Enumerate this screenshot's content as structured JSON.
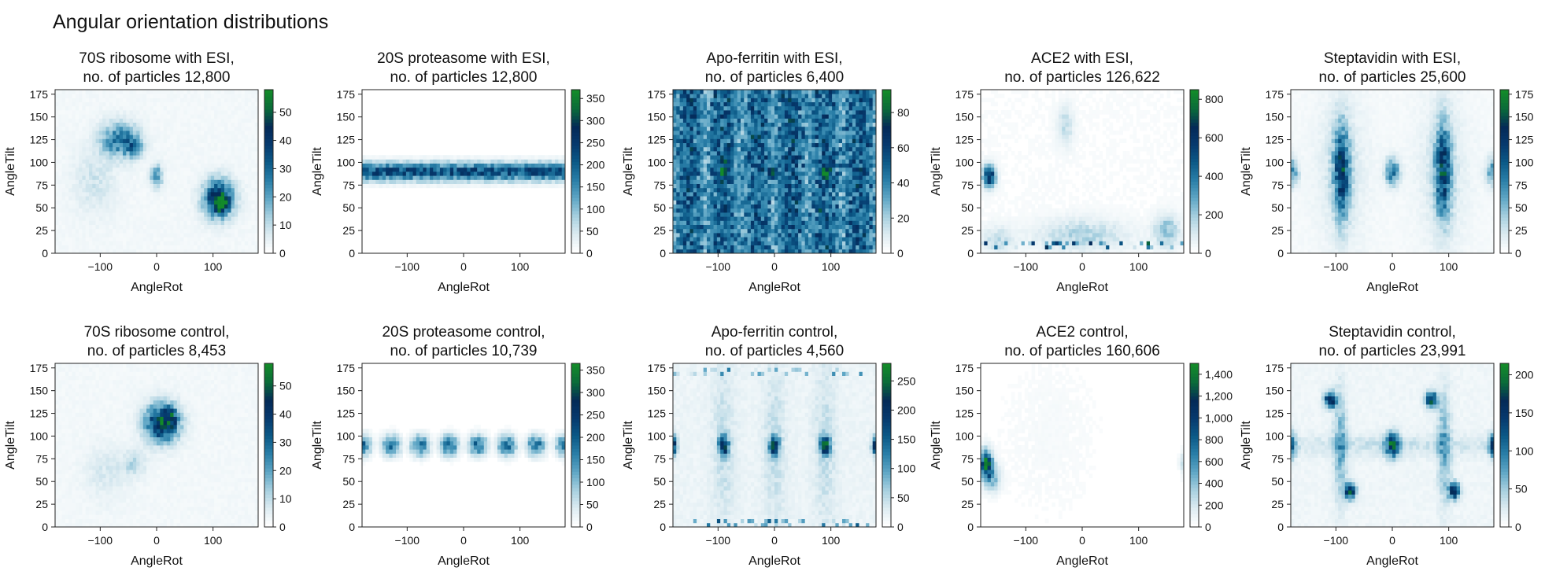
{
  "figure_title": "Angular orientation distributions",
  "chart_data": [
    {
      "type": "heatmap",
      "title_line1": "70S ribosome with ESI,",
      "title_line2": "no. of particles 12,800",
      "xlabel": "AngleRot",
      "ylabel": "AngleTilt",
      "xlim": [
        -180,
        180
      ],
      "ylim": [
        0,
        180
      ],
      "xticks": [
        -100,
        0,
        100
      ],
      "xtick_labels": [
        "−100",
        "0",
        "100"
      ],
      "yticks": [
        0,
        25,
        50,
        75,
        100,
        125,
        150,
        175
      ],
      "ytick_labels": [
        "0",
        "25",
        "50",
        "75",
        "100",
        "125",
        "150",
        "175"
      ],
      "colorbar_ticks": [
        0,
        10,
        20,
        30,
        40,
        50
      ],
      "colorbar_tick_labels": [
        "0",
        "10",
        "20",
        "30",
        "40",
        "50"
      ],
      "colorbar_max": 58,
      "pattern": "blobs",
      "background": 0.04,
      "blobs": [
        {
          "rot": -65,
          "tilt": 125,
          "srot": 22,
          "stilt": 13,
          "val": 0.45
        },
        {
          "rot": -40,
          "tilt": 118,
          "srot": 10,
          "stilt": 8,
          "val": 0.3
        },
        {
          "rot": 0,
          "tilt": 85,
          "srot": 7,
          "stilt": 8,
          "val": 0.4
        },
        {
          "rot": 110,
          "tilt": 60,
          "srot": 18,
          "stilt": 14,
          "val": 0.75
        },
        {
          "rot": 115,
          "tilt": 55,
          "srot": 7,
          "stilt": 6,
          "val": 0.6
        },
        {
          "rot": -110,
          "tilt": 80,
          "srot": 25,
          "stilt": 25,
          "val": 0.1
        }
      ]
    },
    {
      "type": "heatmap",
      "title_line1": "20S proteasome with ESI,",
      "title_line2": "no. of particles 12,800",
      "xlabel": "AngleRot",
      "ylabel": "AngleTilt",
      "xlim": [
        -180,
        180
      ],
      "ylim": [
        0,
        180
      ],
      "xticks": [
        -100,
        0,
        100
      ],
      "xtick_labels": [
        "−100",
        "0",
        "100"
      ],
      "yticks": [
        0,
        25,
        50,
        75,
        100,
        125,
        150,
        175
      ],
      "ytick_labels": [
        "0",
        "25",
        "50",
        "75",
        "100",
        "125",
        "150",
        "175"
      ],
      "colorbar_ticks": [
        0,
        50,
        100,
        150,
        200,
        250,
        300,
        350
      ],
      "colorbar_tick_labels": [
        "0",
        "50",
        "100",
        "150",
        "200",
        "250",
        "300",
        "350"
      ],
      "colorbar_max": 370,
      "pattern": "band",
      "band_center": 90,
      "band_width": 7,
      "band_val": 0.6,
      "background": 0.0
    },
    {
      "type": "heatmap",
      "title_line1": "Apo-ferritin with ESI,",
      "title_line2": "no. of particles 6,400",
      "xlabel": "AngleRot",
      "ylabel": "AngleTilt",
      "xlim": [
        -180,
        180
      ],
      "ylim": [
        0,
        180
      ],
      "xticks": [
        -100,
        0,
        100
      ],
      "xtick_labels": [
        "−100",
        "0",
        "100"
      ],
      "yticks": [
        0,
        25,
        50,
        75,
        100,
        125,
        150,
        175
      ],
      "ytick_labels": [
        "0",
        "25",
        "50",
        "75",
        "100",
        "125",
        "150",
        "175"
      ],
      "colorbar_ticks": [
        0,
        20,
        40,
        60,
        80
      ],
      "colorbar_tick_labels": [
        "0",
        "20",
        "40",
        "60",
        "80"
      ],
      "colorbar_max": 93,
      "pattern": "uniform",
      "background": 0.45,
      "blobs": [
        {
          "rot": -90,
          "tilt": 90,
          "srot": 5,
          "stilt": 5,
          "val": 0.55
        },
        {
          "rot": 0,
          "tilt": 90,
          "srot": 5,
          "stilt": 5,
          "val": 0.55
        },
        {
          "rot": 90,
          "tilt": 90,
          "srot": 5,
          "stilt": 5,
          "val": 0.55
        }
      ]
    },
    {
      "type": "heatmap",
      "title_line1": "ACE2 with ESI,",
      "title_line2": "no. of particles 126,622",
      "xlabel": "AngleRot",
      "ylabel": "AngleTilt",
      "xlim": [
        -180,
        180
      ],
      "ylim": [
        0,
        180
      ],
      "xticks": [
        -100,
        0,
        100
      ],
      "xtick_labels": [
        "−100",
        "0",
        "100"
      ],
      "yticks": [
        0,
        25,
        50,
        75,
        100,
        125,
        150,
        175
      ],
      "ytick_labels": [
        "0",
        "25",
        "50",
        "75",
        "100",
        "125",
        "150",
        "175"
      ],
      "colorbar_ticks": [
        0,
        200,
        400,
        600,
        800
      ],
      "colorbar_tick_labels": [
        "0",
        "200",
        "400",
        "600",
        "800"
      ],
      "colorbar_max": 850,
      "pattern": "blobs",
      "background": 0.02,
      "blobs": [
        {
          "rot": -165,
          "tilt": 85,
          "srot": 8,
          "stilt": 8,
          "val": 0.7
        },
        {
          "rot": -30,
          "tilt": 140,
          "srot": 10,
          "stilt": 15,
          "val": 0.15
        },
        {
          "rot": 0,
          "tilt": 20,
          "srot": 55,
          "stilt": 12,
          "val": 0.18
        },
        {
          "rot": 150,
          "tilt": 25,
          "srot": 15,
          "stilt": 12,
          "val": 0.25
        },
        {
          "rot": -150,
          "tilt": 15,
          "srot": 20,
          "stilt": 10,
          "val": 0.15
        }
      ],
      "edge_row": {
        "tilt": 8,
        "val": 0.7
      }
    },
    {
      "type": "heatmap",
      "title_line1": "Steptavidin with ESI,",
      "title_line2": "no. of particles 25,600",
      "xlabel": "AngleRot",
      "ylabel": "AngleTilt",
      "xlim": [
        -180,
        180
      ],
      "ylim": [
        0,
        180
      ],
      "xticks": [
        -100,
        0,
        100
      ],
      "xtick_labels": [
        "−100",
        "0",
        "100"
      ],
      "yticks": [
        0,
        25,
        50,
        75,
        100,
        125,
        150,
        175
      ],
      "ytick_labels": [
        "0",
        "25",
        "50",
        "75",
        "100",
        "125",
        "150",
        "175"
      ],
      "colorbar_ticks": [
        0,
        25,
        50,
        75,
        100,
        125,
        150,
        175
      ],
      "colorbar_tick_labels": [
        "0",
        "25",
        "50",
        "75",
        "100",
        "125",
        "150",
        "175"
      ],
      "colorbar_max": 180,
      "pattern": "blobs",
      "background": 0.03,
      "blobs": [
        {
          "rot": -90,
          "tilt": 90,
          "srot": 10,
          "stilt": 35,
          "val": 0.6
        },
        {
          "rot": 90,
          "tilt": 90,
          "srot": 10,
          "stilt": 35,
          "val": 0.6
        },
        {
          "rot": 0,
          "tilt": 90,
          "srot": 9,
          "stilt": 10,
          "val": 0.45
        },
        {
          "rot": -180,
          "tilt": 90,
          "srot": 9,
          "stilt": 10,
          "val": 0.4
        },
        {
          "rot": 180,
          "tilt": 90,
          "srot": 9,
          "stilt": 10,
          "val": 0.4
        },
        {
          "rot": -90,
          "tilt": 90,
          "srot": 30,
          "stilt": 55,
          "val": 0.1
        },
        {
          "rot": 90,
          "tilt": 90,
          "srot": 30,
          "stilt": 55,
          "val": 0.1
        }
      ]
    },
    {
      "type": "heatmap",
      "title_line1": "70S ribosome control,",
      "title_line2": "no. of particles 8,453",
      "xlabel": "AngleRot",
      "ylabel": "AngleTilt",
      "xlim": [
        -180,
        180
      ],
      "ylim": [
        0,
        180
      ],
      "xticks": [
        -100,
        0,
        100
      ],
      "xtick_labels": [
        "−100",
        "0",
        "100"
      ],
      "yticks": [
        0,
        25,
        50,
        75,
        100,
        125,
        150,
        175
      ],
      "ytick_labels": [
        "0",
        "25",
        "50",
        "75",
        "100",
        "125",
        "150",
        "175"
      ],
      "colorbar_ticks": [
        0,
        10,
        20,
        30,
        40,
        50
      ],
      "colorbar_tick_labels": [
        "0",
        "10",
        "20",
        "30",
        "40",
        "50"
      ],
      "colorbar_max": 58,
      "pattern": "blobs",
      "background": 0.04,
      "blobs": [
        {
          "rot": 10,
          "tilt": 115,
          "srot": 20,
          "stilt": 14,
          "val": 0.8
        },
        {
          "rot": 25,
          "tilt": 120,
          "srot": 8,
          "stilt": 7,
          "val": 0.3
        },
        {
          "rot": -40,
          "tilt": 70,
          "srot": 14,
          "stilt": 10,
          "val": 0.15
        },
        {
          "rot": -90,
          "tilt": 60,
          "srot": 25,
          "stilt": 20,
          "val": 0.08
        }
      ]
    },
    {
      "type": "heatmap",
      "title_line1": "20S proteasome control,",
      "title_line2": "no. of particles 10,739",
      "xlabel": "AngleRot",
      "ylabel": "AngleTilt",
      "xlim": [
        -180,
        180
      ],
      "ylim": [
        0,
        180
      ],
      "xticks": [
        -100,
        0,
        100
      ],
      "xtick_labels": [
        "−100",
        "0",
        "100"
      ],
      "yticks": [
        0,
        25,
        50,
        75,
        100,
        125,
        150,
        175
      ],
      "ytick_labels": [
        "0",
        "25",
        "50",
        "75",
        "100",
        "125",
        "150",
        "175"
      ],
      "colorbar_ticks": [
        0,
        50,
        100,
        150,
        200,
        250,
        300,
        350
      ],
      "colorbar_tick_labels": [
        "0",
        "50",
        "100",
        "150",
        "200",
        "250",
        "300",
        "350"
      ],
      "colorbar_max": 365,
      "pattern": "band",
      "band_center": 90,
      "band_width": 8,
      "band_val": 0.5,
      "background": 0.0,
      "band_period": 51.4
    },
    {
      "type": "heatmap",
      "title_line1": "Apo-ferritin control,",
      "title_line2": "no. of particles 4,560",
      "xlabel": "AngleRot",
      "ylabel": "AngleTilt",
      "xlim": [
        -180,
        180
      ],
      "ylim": [
        0,
        180
      ],
      "xticks": [
        -100,
        0,
        100
      ],
      "xtick_labels": [
        "−100",
        "0",
        "100"
      ],
      "yticks": [
        0,
        25,
        50,
        75,
        100,
        125,
        150,
        175
      ],
      "ytick_labels": [
        "0",
        "25",
        "50",
        "75",
        "100",
        "125",
        "150",
        "175"
      ],
      "colorbar_ticks": [
        0,
        50,
        100,
        150,
        200,
        250
      ],
      "colorbar_tick_labels": [
        "0",
        "50",
        "100",
        "150",
        "200",
        "250"
      ],
      "colorbar_max": 280,
      "pattern": "blobs",
      "background": 0.06,
      "blobs": [
        {
          "rot": -90,
          "tilt": 90,
          "srot": 6,
          "stilt": 7,
          "val": 0.75
        },
        {
          "rot": 0,
          "tilt": 90,
          "srot": 6,
          "stilt": 7,
          "val": 0.75
        },
        {
          "rot": 90,
          "tilt": 90,
          "srot": 6,
          "stilt": 7,
          "val": 0.75
        },
        {
          "rot": -180,
          "tilt": 90,
          "srot": 5,
          "stilt": 7,
          "val": 0.7
        },
        {
          "rot": 180,
          "tilt": 90,
          "srot": 5,
          "stilt": 7,
          "val": 0.7
        },
        {
          "rot": -90,
          "tilt": 90,
          "srot": 14,
          "stilt": 70,
          "val": 0.1
        },
        {
          "rot": 0,
          "tilt": 90,
          "srot": 14,
          "stilt": 70,
          "val": 0.1
        },
        {
          "rot": 90,
          "tilt": 90,
          "srot": 14,
          "stilt": 70,
          "val": 0.1
        }
      ],
      "edge_row": {
        "tilt": 172,
        "val": 0.4
      },
      "edge_row2": {
        "tilt": 6,
        "val": 0.4
      }
    },
    {
      "type": "heatmap",
      "title_line1": "ACE2 control,",
      "title_line2": "no. of particles 160,606",
      "xlabel": "AngleRot",
      "ylabel": "AngleTilt",
      "xlim": [
        -180,
        180
      ],
      "ylim": [
        0,
        180
      ],
      "xticks": [
        -100,
        0,
        100
      ],
      "xtick_labels": [
        "−100",
        "0",
        "100"
      ],
      "yticks": [
        0,
        25,
        50,
        75,
        100,
        125,
        150,
        175
      ],
      "ytick_labels": [
        "0",
        "25",
        "50",
        "75",
        "100",
        "125",
        "150",
        "175"
      ],
      "colorbar_ticks": [
        0,
        200,
        400,
        600,
        800,
        1000,
        1200,
        1400
      ],
      "colorbar_tick_labels": [
        "0",
        "200",
        "400",
        "600",
        "800",
        "1,000",
        "1,200",
        "1,400"
      ],
      "colorbar_max": 1500,
      "pattern": "blobs",
      "background": 0.01,
      "blobs": [
        {
          "rot": -170,
          "tilt": 70,
          "srot": 7,
          "stilt": 10,
          "val": 0.85
        },
        {
          "rot": -160,
          "tilt": 55,
          "srot": 10,
          "stilt": 10,
          "val": 0.3
        },
        {
          "rot": 178,
          "tilt": 70,
          "srot": 4,
          "stilt": 8,
          "val": 0.15
        },
        {
          "rot": -60,
          "tilt": 100,
          "srot": 60,
          "stilt": 60,
          "val": 0.02
        }
      ]
    },
    {
      "type": "heatmap",
      "title_line1": "Steptavidin control,",
      "title_line2": "no. of particles 23,991",
      "xlabel": "AngleRot",
      "ylabel": "AngleTilt",
      "xlim": [
        -180,
        180
      ],
      "ylim": [
        0,
        180
      ],
      "xticks": [
        -100,
        0,
        100
      ],
      "xtick_labels": [
        "−100",
        "0",
        "100"
      ],
      "yticks": [
        0,
        25,
        50,
        75,
        100,
        125,
        150,
        175
      ],
      "ytick_labels": [
        "0",
        "25",
        "50",
        "75",
        "100",
        "125",
        "150",
        "175"
      ],
      "colorbar_ticks": [
        0,
        50,
        100,
        150,
        200
      ],
      "colorbar_tick_labels": [
        "0",
        "50",
        "100",
        "150",
        "200"
      ],
      "colorbar_max": 215,
      "pattern": "blobs",
      "background": 0.05,
      "blobs": [
        {
          "rot": -110,
          "tilt": 140,
          "srot": 7,
          "stilt": 6,
          "val": 0.75
        },
        {
          "rot": -75,
          "tilt": 40,
          "srot": 7,
          "stilt": 6,
          "val": 0.75
        },
        {
          "rot": 70,
          "tilt": 140,
          "srot": 7,
          "stilt": 6,
          "val": 0.75
        },
        {
          "rot": 110,
          "tilt": 40,
          "srot": 7,
          "stilt": 6,
          "val": 0.75
        },
        {
          "rot": 0,
          "tilt": 90,
          "srot": 8,
          "stilt": 9,
          "val": 0.7
        },
        {
          "rot": -180,
          "tilt": 90,
          "srot": 6,
          "stilt": 9,
          "val": 0.6
        },
        {
          "rot": 180,
          "tilt": 90,
          "srot": 6,
          "stilt": 9,
          "val": 0.6
        },
        {
          "rot": -92,
          "tilt": 90,
          "srot": 8,
          "stilt": 40,
          "val": 0.28
        },
        {
          "rot": 92,
          "tilt": 90,
          "srot": 8,
          "stilt": 40,
          "val": 0.28
        },
        {
          "rot": 0,
          "tilt": 90,
          "srot": 180,
          "stilt": 8,
          "val": 0.1
        }
      ]
    }
  ],
  "colormap": [
    "#ffffff",
    "#dcebf1",
    "#a6cfdf",
    "#5fa6c5",
    "#2a7fa8",
    "#0c5a88",
    "#063a6e",
    "#042a58",
    "#0a6a3a",
    "#138a2a"
  ]
}
